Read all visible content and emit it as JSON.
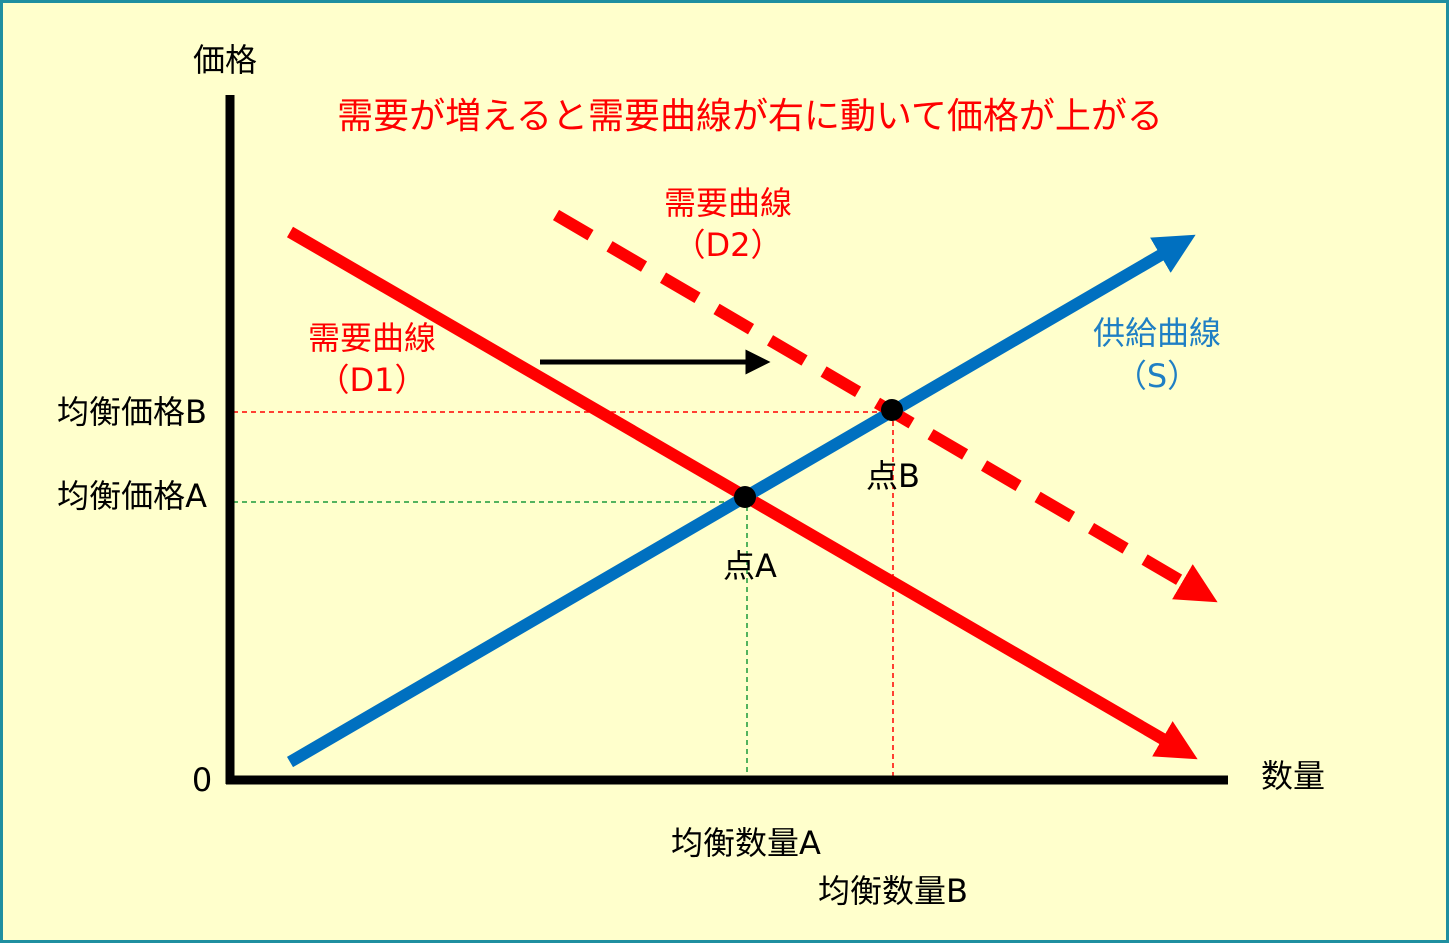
{
  "title": "需要が増えると需要曲線が右に動いて価格が上がる",
  "axes": {
    "y_label": "価格",
    "x_label": "数量",
    "origin": "0"
  },
  "curves": {
    "d2": {
      "name": "需要曲線",
      "tag": "（D2）"
    },
    "d1": {
      "name": "需要曲線",
      "tag": "（D1）"
    },
    "s": {
      "name": "供給曲線",
      "tag": "（S）"
    }
  },
  "price_labels": {
    "b": "均衡価格B",
    "a": "均衡価格A"
  },
  "points": {
    "b": "点B",
    "a": "点A"
  },
  "quantity_labels": {
    "a": "均衡数量A",
    "b": "均衡数量B"
  }
}
